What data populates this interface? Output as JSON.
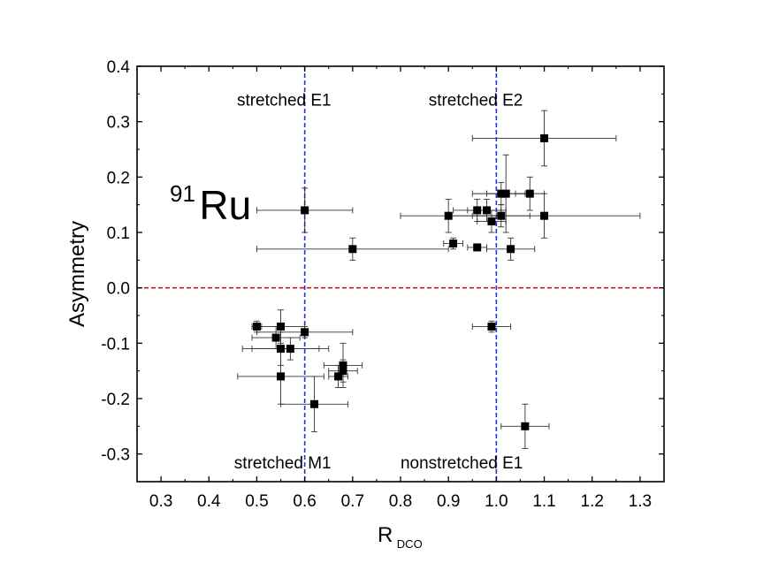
{
  "chart_data": {
    "type": "scatter",
    "title": "",
    "xlabel_main": "R",
    "xlabel_sub": "DCO",
    "ylabel": "Asymmetry",
    "xlim": [
      0.25,
      1.35
    ],
    "ylim": [
      -0.35,
      0.4
    ],
    "xticks": [
      0.3,
      0.4,
      0.5,
      0.6,
      0.7,
      0.8,
      0.9,
      1.0,
      1.1,
      1.2,
      1.3
    ],
    "xtick_labels": [
      "0.3",
      "0.4",
      "0.5",
      "0.6",
      "0.7",
      "0.8",
      "0.9",
      "1.0",
      "1.1",
      "1.2",
      "1.3"
    ],
    "yticks": [
      0.4,
      0.3,
      0.2,
      0.1,
      0.0,
      -0.1,
      -0.2,
      -0.3
    ],
    "ytick_labels": [
      "0.4",
      "0.3",
      "0.2",
      "0.1",
      "0.0",
      "-0.1",
      "-0.2",
      "-0.3"
    ],
    "nucleus_mass": "91",
    "nucleus_symbol": "Ru",
    "reference_lines": [
      {
        "orientation": "vertical",
        "value": 0.6,
        "color": "#2233dd",
        "style": "dashed"
      },
      {
        "orientation": "vertical",
        "value": 1.0,
        "color": "#2233dd",
        "style": "dashed"
      },
      {
        "orientation": "horizontal",
        "value": 0.0,
        "color": "#dd1111",
        "style": "dashed"
      }
    ],
    "annotations": [
      {
        "text": "stretched E1",
        "x": 0.6,
        "y": 0.34,
        "align": "right"
      },
      {
        "text": "stretched E2",
        "x": 1.0,
        "y": 0.34,
        "align": "right"
      },
      {
        "text": "stretched M1",
        "x": 0.6,
        "y": -0.315,
        "align": "right"
      },
      {
        "text": "nonstretched E1",
        "x": 1.0,
        "y": -0.315,
        "align": "right"
      }
    ],
    "points": [
      {
        "x": 0.6,
        "y": 0.14,
        "xerr": 0.1,
        "yerr": 0.04
      },
      {
        "x": 0.7,
        "y": 0.07,
        "xerr": 0.2,
        "yerr": 0.02
      },
      {
        "x": 1.1,
        "y": 0.27,
        "xerr": 0.15,
        "yerr": 0.05
      },
      {
        "x": 1.01,
        "y": 0.17,
        "xerr": 0.06,
        "yerr": 0.02
      },
      {
        "x": 1.02,
        "y": 0.17,
        "xerr": 0.04,
        "yerr": 0.07
      },
      {
        "x": 1.07,
        "y": 0.17,
        "xerr": 0.03,
        "yerr": 0.03
      },
      {
        "x": 0.9,
        "y": 0.13,
        "xerr": 0.1,
        "yerr": 0.03
      },
      {
        "x": 0.96,
        "y": 0.14,
        "xerr": 0.05,
        "yerr": 0.02
      },
      {
        "x": 0.98,
        "y": 0.14,
        "xerr": 0.04,
        "yerr": 0.02
      },
      {
        "x": 1.01,
        "y": 0.13,
        "xerr": 0.06,
        "yerr": 0.02
      },
      {
        "x": 1.1,
        "y": 0.13,
        "xerr": 0.2,
        "yerr": 0.04
      },
      {
        "x": 0.99,
        "y": 0.12,
        "xerr": 0.03,
        "yerr": 0.02
      },
      {
        "x": 0.91,
        "y": 0.08,
        "xerr": 0.02,
        "yerr": 0.01
      },
      {
        "x": 0.96,
        "y": 0.073,
        "xerr": 0.02,
        "yerr": 0.005
      },
      {
        "x": 1.03,
        "y": 0.07,
        "xerr": 0.05,
        "yerr": 0.02
      },
      {
        "x": 0.99,
        "y": -0.07,
        "xerr": 0.04,
        "yerr": 0.01
      },
      {
        "x": 1.06,
        "y": -0.25,
        "xerr": 0.05,
        "yerr": 0.04
      },
      {
        "x": 0.5,
        "y": -0.07,
        "xerr": 0.01,
        "yerr": 0.01
      },
      {
        "x": 0.55,
        "y": -0.07,
        "xerr": 0.05,
        "yerr": 0.03
      },
      {
        "x": 0.6,
        "y": -0.08,
        "xerr": 0.1,
        "yerr": 0.01
      },
      {
        "x": 0.54,
        "y": -0.09,
        "xerr": 0.05,
        "yerr": 0.02
      },
      {
        "x": 0.55,
        "y": -0.11,
        "xerr": 0.08,
        "yerr": 0.03
      },
      {
        "x": 0.57,
        "y": -0.11,
        "xerr": 0.08,
        "yerr": 0.02
      },
      {
        "x": 0.68,
        "y": -0.14,
        "xerr": 0.04,
        "yerr": 0.04
      },
      {
        "x": 0.68,
        "y": -0.15,
        "xerr": 0.03,
        "yerr": 0.02
      },
      {
        "x": 0.67,
        "y": -0.16,
        "xerr": 0.02,
        "yerr": 0.02
      },
      {
        "x": 0.55,
        "y": -0.16,
        "xerr": 0.09,
        "yerr": 0.05
      },
      {
        "x": 0.62,
        "y": -0.21,
        "xerr": 0.07,
        "yerr": 0.05
      }
    ]
  }
}
